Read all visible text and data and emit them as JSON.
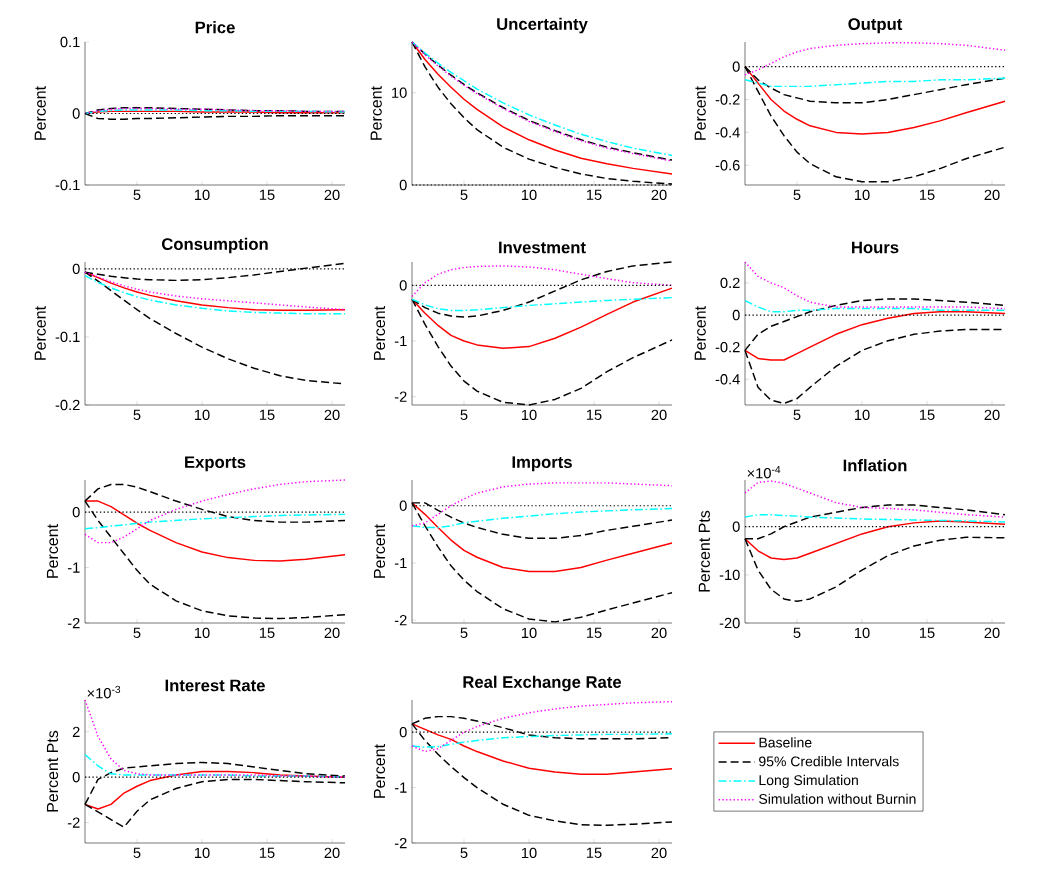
{
  "chart_data": [
    {
      "type": "line",
      "title": "Price",
      "ylabel": "Percent",
      "x": [
        1,
        2,
        3,
        4,
        5,
        6,
        8,
        10,
        12,
        14,
        16,
        18,
        21
      ],
      "xlim": [
        1,
        21
      ],
      "xticks": [
        5,
        10,
        15,
        20
      ],
      "ylim": [
        -0.1,
        0.1
      ],
      "yticks": [
        -0.1,
        0,
        0.1
      ],
      "ref_lines": [
        {
          "axis": "y",
          "value": 0,
          "color": "#000000",
          "line_style": "dotted"
        }
      ],
      "series": [
        {
          "color": "#ff0000",
          "line_style": "solid",
          "values": [
            0,
            0.002,
            0.003,
            0.003,
            0.003,
            0.003,
            0.003,
            0.002,
            0.002,
            0.002,
            0.001,
            0.001,
            0.001
          ]
        },
        {
          "color": "#000000",
          "line_style": "dashed",
          "values": [
            0,
            0.005,
            0.007,
            0.008,
            0.008,
            0.008,
            0.007,
            0.006,
            0.005,
            0.004,
            0.004,
            0.003,
            0.003
          ]
        },
        {
          "color": "#000000",
          "line_style": "dashed",
          "values": [
            0,
            -0.007,
            -0.008,
            -0.008,
            -0.007,
            -0.007,
            -0.006,
            -0.005,
            -0.004,
            -0.004,
            -0.003,
            -0.003,
            -0.003
          ]
        },
        {
          "color": "#00ffff",
          "line_style": "dashdot",
          "values": [
            0,
            0.003,
            0.004,
            0.005,
            0.005,
            0.005,
            0.005,
            0.004,
            0.004,
            0.003,
            0.003,
            0.003,
            0.002
          ]
        },
        {
          "color": "#ff00ff",
          "line_style": "dotted",
          "values": [
            0,
            0.004,
            0.006,
            0.007,
            0.007,
            0.007,
            0.006,
            0.006,
            0.005,
            0.004,
            0.004,
            0.003,
            0.003
          ]
        }
      ]
    },
    {
      "type": "line",
      "title": "Uncertainty",
      "ylabel": "Percent",
      "x": [
        1,
        2,
        3,
        4,
        5,
        6,
        8,
        10,
        12,
        14,
        16,
        18,
        21
      ],
      "xlim": [
        1,
        21
      ],
      "xticks": [
        5,
        10,
        15,
        20
      ],
      "ylim": [
        0,
        15.5
      ],
      "yticks": [
        0,
        10
      ],
      "ref_lines": [
        {
          "axis": "y",
          "value": 0,
          "color": "#000000",
          "line_style": "dotted"
        }
      ],
      "series": [
        {
          "color": "#ff0000",
          "line_style": "solid",
          "values": [
            15.5,
            13.6,
            12.0,
            10.6,
            9.3,
            8.2,
            6.3,
            4.9,
            3.8,
            2.9,
            2.3,
            1.8,
            1.2
          ]
        },
        {
          "color": "#000000",
          "line_style": "dashed",
          "values": [
            15.5,
            14.2,
            13.0,
            11.9,
            10.9,
            10.0,
            8.4,
            7.0,
            5.9,
            4.9,
            4.1,
            3.5,
            2.7
          ]
        },
        {
          "color": "#000000",
          "line_style": "dashed",
          "values": [
            15.5,
            12.8,
            10.6,
            8.8,
            7.3,
            6.0,
            4.1,
            2.8,
            1.9,
            1.2,
            0.7,
            0.4,
            0.1
          ]
        },
        {
          "color": "#00ffff",
          "line_style": "dashdot",
          "values": [
            15.5,
            14.3,
            13.2,
            12.2,
            11.3,
            10.4,
            8.9,
            7.6,
            6.5,
            5.5,
            4.7,
            4.0,
            3.2
          ]
        },
        {
          "color": "#ff00ff",
          "line_style": "dotted",
          "values": [
            15.5,
            14.1,
            12.9,
            11.8,
            10.8,
            9.9,
            8.3,
            6.9,
            5.8,
            4.8,
            4.0,
            3.4,
            2.6
          ]
        }
      ]
    },
    {
      "type": "line",
      "title": "Output",
      "ylabel": "Percent",
      "x": [
        1,
        2,
        3,
        4,
        5,
        6,
        8,
        10,
        12,
        14,
        16,
        18,
        21
      ],
      "xlim": [
        1,
        21
      ],
      "xticks": [
        5,
        10,
        15,
        20
      ],
      "ylim": [
        -0.72,
        0.15
      ],
      "yticks": [
        -0.6,
        -0.4,
        -0.2,
        0
      ],
      "ref_lines": [
        {
          "axis": "y",
          "value": 0,
          "color": "#000000",
          "line_style": "dotted"
        }
      ],
      "series": [
        {
          "color": "#ff0000",
          "line_style": "solid",
          "values": [
            0,
            -0.1,
            -0.2,
            -0.27,
            -0.32,
            -0.36,
            -0.4,
            -0.41,
            -0.4,
            -0.37,
            -0.33,
            -0.28,
            -0.21
          ]
        },
        {
          "color": "#000000",
          "line_style": "dashed",
          "values": [
            0,
            -0.08,
            -0.13,
            -0.17,
            -0.19,
            -0.21,
            -0.22,
            -0.22,
            -0.2,
            -0.17,
            -0.14,
            -0.11,
            -0.07
          ]
        },
        {
          "color": "#000000",
          "line_style": "dashed",
          "values": [
            0,
            -0.15,
            -0.3,
            -0.42,
            -0.52,
            -0.59,
            -0.67,
            -0.7,
            -0.7,
            -0.67,
            -0.62,
            -0.56,
            -0.49
          ]
        },
        {
          "color": "#00ffff",
          "line_style": "dashdot",
          "values": [
            -0.08,
            -0.1,
            -0.12,
            -0.12,
            -0.12,
            -0.12,
            -0.11,
            -0.1,
            -0.09,
            -0.09,
            -0.08,
            -0.08,
            -0.07
          ]
        },
        {
          "color": "#ff00ff",
          "line_style": "dotted",
          "values": [
            -0.05,
            -0.02,
            0.02,
            0.06,
            0.09,
            0.11,
            0.13,
            0.14,
            0.145,
            0.145,
            0.14,
            0.13,
            0.1
          ]
        }
      ]
    },
    {
      "type": "line",
      "title": "Consumption",
      "ylabel": "Percent",
      "x": [
        1,
        2,
        3,
        4,
        5,
        6,
        8,
        10,
        12,
        14,
        16,
        18,
        21
      ],
      "xlim": [
        1,
        21
      ],
      "xticks": [
        5,
        10,
        15,
        20
      ],
      "ylim": [
        -0.2,
        0.01
      ],
      "yticks": [
        -0.2,
        -0.1,
        0
      ],
      "ref_lines": [
        {
          "axis": "y",
          "value": 0,
          "color": "#000000",
          "line_style": "dotted"
        }
      ],
      "series": [
        {
          "color": "#ff0000",
          "line_style": "solid",
          "values": [
            -0.005,
            -0.013,
            -0.021,
            -0.028,
            -0.034,
            -0.039,
            -0.047,
            -0.053,
            -0.057,
            -0.06,
            -0.061,
            -0.061,
            -0.06
          ]
        },
        {
          "color": "#000000",
          "line_style": "dashed",
          "values": [
            -0.005,
            -0.008,
            -0.011,
            -0.013,
            -0.015,
            -0.016,
            -0.017,
            -0.016,
            -0.013,
            -0.009,
            -0.004,
            0.001,
            0.008
          ]
        },
        {
          "color": "#000000",
          "line_style": "dashed",
          "values": [
            -0.005,
            -0.018,
            -0.032,
            -0.046,
            -0.06,
            -0.073,
            -0.095,
            -0.115,
            -0.132,
            -0.146,
            -0.157,
            -0.164,
            -0.169
          ]
        },
        {
          "color": "#00ffff",
          "line_style": "dashdot",
          "values": [
            -0.01,
            -0.02,
            -0.028,
            -0.035,
            -0.041,
            -0.046,
            -0.053,
            -0.058,
            -0.062,
            -0.064,
            -0.065,
            -0.066,
            -0.066
          ]
        },
        {
          "color": "#ff00ff",
          "line_style": "dotted",
          "values": [
            -0.005,
            -0.012,
            -0.019,
            -0.025,
            -0.03,
            -0.034,
            -0.04,
            -0.044,
            -0.047,
            -0.05,
            -0.053,
            -0.056,
            -0.06
          ]
        }
      ]
    },
    {
      "type": "line",
      "title": "Investment",
      "ylabel": "Percent",
      "x": [
        1,
        2,
        3,
        4,
        5,
        6,
        8,
        10,
        12,
        14,
        16,
        18,
        21
      ],
      "xlim": [
        1,
        21
      ],
      "xticks": [
        5,
        10,
        15,
        20
      ],
      "ylim": [
        -2.15,
        0.42
      ],
      "yticks": [
        -2,
        -1,
        0
      ],
      "ref_lines": [
        {
          "axis": "y",
          "value": 0,
          "color": "#000000",
          "line_style": "dotted"
        }
      ],
      "series": [
        {
          "color": "#ff0000",
          "line_style": "solid",
          "values": [
            -0.25,
            -0.5,
            -0.72,
            -0.9,
            -1.0,
            -1.07,
            -1.13,
            -1.1,
            -0.95,
            -0.75,
            -0.52,
            -0.3,
            -0.05
          ]
        },
        {
          "color": "#000000",
          "line_style": "dashed",
          "values": [
            -0.25,
            -0.4,
            -0.5,
            -0.55,
            -0.57,
            -0.55,
            -0.45,
            -0.3,
            -0.1,
            0.1,
            0.25,
            0.35,
            0.42
          ]
        },
        {
          "color": "#000000",
          "line_style": "dashed",
          "values": [
            -0.25,
            -0.7,
            -1.1,
            -1.45,
            -1.72,
            -1.9,
            -2.1,
            -2.15,
            -2.05,
            -1.85,
            -1.55,
            -1.3,
            -0.98
          ]
        },
        {
          "color": "#00ffff",
          "line_style": "dashdot",
          "values": [
            -0.25,
            -0.35,
            -0.42,
            -0.45,
            -0.45,
            -0.44,
            -0.4,
            -0.36,
            -0.33,
            -0.3,
            -0.27,
            -0.25,
            -0.22
          ]
        },
        {
          "color": "#ff00ff",
          "line_style": "dotted",
          "values": [
            -0.2,
            0.05,
            0.2,
            0.28,
            0.32,
            0.34,
            0.35,
            0.33,
            0.28,
            0.2,
            0.12,
            0.05,
            0.0
          ]
        }
      ]
    },
    {
      "type": "line",
      "title": "Hours",
      "ylabel": "Percent",
      "x": [
        1,
        2,
        3,
        4,
        5,
        6,
        8,
        10,
        12,
        14,
        16,
        18,
        21
      ],
      "xlim": [
        1,
        21
      ],
      "xticks": [
        5,
        10,
        15,
        20
      ],
      "ylim": [
        -0.56,
        0.33
      ],
      "yticks": [
        -0.4,
        -0.2,
        0,
        0.2
      ],
      "ref_lines": [
        {
          "axis": "y",
          "value": 0,
          "color": "#000000",
          "line_style": "dotted"
        }
      ],
      "series": [
        {
          "color": "#ff0000",
          "line_style": "solid",
          "values": [
            -0.22,
            -0.27,
            -0.28,
            -0.28,
            -0.24,
            -0.2,
            -0.12,
            -0.06,
            -0.02,
            0.01,
            0.02,
            0.02,
            0.01
          ]
        },
        {
          "color": "#000000",
          "line_style": "dashed",
          "values": [
            -0.22,
            -0.12,
            -0.07,
            -0.04,
            -0.01,
            0.02,
            0.06,
            0.09,
            0.1,
            0.1,
            0.09,
            0.08,
            0.06
          ]
        },
        {
          "color": "#000000",
          "line_style": "dashed",
          "values": [
            -0.22,
            -0.45,
            -0.53,
            -0.55,
            -0.52,
            -0.45,
            -0.32,
            -0.22,
            -0.16,
            -0.12,
            -0.1,
            -0.09,
            -0.09
          ]
        },
        {
          "color": "#00ffff",
          "line_style": "dashdot",
          "values": [
            0.09,
            0.05,
            0.02,
            0.02,
            0.03,
            0.03,
            0.04,
            0.04,
            0.04,
            0.04,
            0.03,
            0.03,
            0.03
          ]
        },
        {
          "color": "#ff00ff",
          "line_style": "dotted",
          "values": [
            0.33,
            0.24,
            0.2,
            0.17,
            0.12,
            0.08,
            0.05,
            0.05,
            0.05,
            0.05,
            0.05,
            0.05,
            0.04
          ]
        }
      ]
    },
    {
      "type": "line",
      "title": "Exports",
      "ylabel": "Percent",
      "x": [
        1,
        2,
        3,
        4,
        5,
        6,
        8,
        10,
        12,
        14,
        16,
        18,
        21
      ],
      "xlim": [
        1,
        21
      ],
      "xticks": [
        5,
        10,
        15,
        20
      ],
      "ylim": [
        -2,
        0.58
      ],
      "yticks": [
        -2,
        -1,
        0
      ],
      "ref_lines": [
        {
          "axis": "y",
          "value": 0,
          "color": "#000000",
          "line_style": "dotted"
        }
      ],
      "series": [
        {
          "color": "#ff0000",
          "line_style": "solid",
          "values": [
            0.2,
            0.2,
            0.1,
            -0.05,
            -0.2,
            -0.33,
            -0.55,
            -0.72,
            -0.82,
            -0.87,
            -0.88,
            -0.85,
            -0.77
          ]
        },
        {
          "color": "#000000",
          "line_style": "dashed",
          "values": [
            0.2,
            0.42,
            0.5,
            0.5,
            0.45,
            0.37,
            0.2,
            0.05,
            -0.08,
            -0.15,
            -0.18,
            -0.18,
            -0.15
          ]
        },
        {
          "color": "#000000",
          "line_style": "dashed",
          "values": [
            0.2,
            -0.15,
            -0.45,
            -0.75,
            -1.05,
            -1.3,
            -1.6,
            -1.78,
            -1.87,
            -1.91,
            -1.92,
            -1.9,
            -1.85
          ]
        },
        {
          "color": "#00ffff",
          "line_style": "dashdot",
          "values": [
            -0.3,
            -0.28,
            -0.25,
            -0.23,
            -0.2,
            -0.18,
            -0.15,
            -0.12,
            -0.1,
            -0.08,
            -0.06,
            -0.05,
            -0.04
          ]
        },
        {
          "color": "#ff00ff",
          "line_style": "dotted",
          "values": [
            -0.4,
            -0.55,
            -0.55,
            -0.45,
            -0.3,
            -0.15,
            0.05,
            0.2,
            0.32,
            0.42,
            0.5,
            0.55,
            0.58
          ]
        }
      ]
    },
    {
      "type": "line",
      "title": "Imports",
      "ylabel": "Percent",
      "x": [
        1,
        2,
        3,
        4,
        5,
        6,
        8,
        10,
        12,
        14,
        16,
        18,
        21
      ],
      "xlim": [
        1,
        21
      ],
      "xticks": [
        5,
        10,
        15,
        20
      ],
      "ylim": [
        -2.05,
        0.45
      ],
      "yticks": [
        -2,
        -1,
        0
      ],
      "ref_lines": [
        {
          "axis": "y",
          "value": 0,
          "color": "#000000",
          "line_style": "dotted"
        }
      ],
      "series": [
        {
          "color": "#ff0000",
          "line_style": "solid",
          "values": [
            0.05,
            -0.15,
            -0.38,
            -0.6,
            -0.78,
            -0.9,
            -1.08,
            -1.15,
            -1.15,
            -1.08,
            -0.95,
            -0.83,
            -0.65
          ]
        },
        {
          "color": "#000000",
          "line_style": "dashed",
          "values": [
            0.05,
            0.05,
            -0.08,
            -0.2,
            -0.3,
            -0.38,
            -0.5,
            -0.57,
            -0.57,
            -0.52,
            -0.43,
            -0.36,
            -0.25
          ]
        },
        {
          "color": "#000000",
          "line_style": "dashed",
          "values": [
            0.05,
            -0.35,
            -0.72,
            -1.05,
            -1.3,
            -1.5,
            -1.8,
            -1.98,
            -2.03,
            -1.95,
            -1.82,
            -1.7,
            -1.52
          ]
        },
        {
          "color": "#00ffff",
          "line_style": "dashdot",
          "values": [
            -0.35,
            -0.38,
            -0.38,
            -0.35,
            -0.3,
            -0.27,
            -0.22,
            -0.18,
            -0.14,
            -0.11,
            -0.09,
            -0.07,
            -0.05
          ]
        },
        {
          "color": "#ff00ff",
          "line_style": "dotted",
          "values": [
            -0.35,
            -0.3,
            -0.15,
            0.0,
            0.12,
            0.22,
            0.33,
            0.38,
            0.4,
            0.4,
            0.4,
            0.38,
            0.35
          ]
        }
      ]
    },
    {
      "type": "line",
      "title": "Inflation",
      "ylabel": "Percent Pts",
      "annotations": [
        "×10$^{-4}$"
      ],
      "x": [
        1,
        2,
        3,
        4,
        5,
        6,
        8,
        10,
        12,
        14,
        16,
        18,
        21
      ],
      "xlim": [
        1,
        21
      ],
      "xticks": [
        5,
        10,
        15,
        20
      ],
      "ylim": [
        -20,
        9.7
      ],
      "yticks": [
        -20,
        -10,
        0
      ],
      "ref_lines": [
        {
          "axis": "y",
          "value": 0,
          "color": "#000000",
          "line_style": "dotted"
        }
      ],
      "series": [
        {
          "color": "#ff0000",
          "line_style": "solid",
          "values": [
            -2.5,
            -5,
            -6.5,
            -6.8,
            -6.5,
            -5.5,
            -3.5,
            -1.5,
            0,
            0.8,
            1.2,
            1,
            0.5
          ]
        },
        {
          "color": "#000000",
          "line_style": "dashed",
          "values": [
            -2.5,
            -2.5,
            -1.5,
            0,
            1,
            2,
            3,
            4,
            4.5,
            4.5,
            4,
            3.5,
            2.5
          ]
        },
        {
          "color": "#000000",
          "line_style": "dashed",
          "values": [
            -2.5,
            -9,
            -13,
            -15,
            -15.5,
            -15,
            -12.5,
            -9,
            -6,
            -4,
            -2.8,
            -2.2,
            -2.3
          ]
        },
        {
          "color": "#00ffff",
          "line_style": "dashdot",
          "values": [
            2,
            2.5,
            2.5,
            2.3,
            2.2,
            2,
            1.8,
            1.6,
            1.5,
            1.4,
            1.3,
            1.2,
            1
          ]
        },
        {
          "color": "#ff00ff",
          "line_style": "dotted",
          "values": [
            7,
            9.2,
            9.5,
            9,
            8,
            7,
            5,
            4,
            3.8,
            3.5,
            3,
            2.5,
            2
          ]
        }
      ]
    },
    {
      "type": "line",
      "title": "Interest Rate",
      "ylabel": "Percent Pts",
      "annotations": [
        "×10$^{-3}$"
      ],
      "x": [
        1,
        2,
        3,
        4,
        5,
        6,
        8,
        10,
        12,
        14,
        16,
        18,
        21
      ],
      "xlim": [
        1,
        21
      ],
      "xticks": [
        5,
        10,
        15,
        20
      ],
      "ylim": [
        -2.9,
        3.4
      ],
      "yticks": [
        -2,
        0,
        2
      ],
      "ref_lines": [
        {
          "axis": "y",
          "value": 0,
          "color": "#000000",
          "line_style": "dotted"
        }
      ],
      "series": [
        {
          "color": "#ff0000",
          "line_style": "solid",
          "values": [
            -1.2,
            -1.4,
            -1.2,
            -0.7,
            -0.4,
            -0.15,
            0.1,
            0.25,
            0.25,
            0.2,
            0.1,
            0.05,
            0
          ]
        },
        {
          "color": "#000000",
          "line_style": "dashed",
          "values": [
            -1.2,
            -0.1,
            0.2,
            0.4,
            0.45,
            0.5,
            0.6,
            0.65,
            0.6,
            0.45,
            0.3,
            0.15,
            0.05
          ]
        },
        {
          "color": "#000000",
          "line_style": "dashed",
          "values": [
            -1.2,
            null,
            null,
            -2.2,
            -1.5,
            -1.0,
            -0.5,
            -0.2,
            -0.1,
            -0.1,
            -0.15,
            -0.2,
            -0.25
          ]
        },
        {
          "color": "#00ffff",
          "line_style": "dashdot",
          "values": [
            1.0,
            0.5,
            0.15,
            0.1,
            0.1,
            0.1,
            0.1,
            0.1,
            0.1,
            0.05,
            0.05,
            0.05,
            0
          ]
        },
        {
          "color": "#ff00ff",
          "line_style": "dotted",
          "values": [
            3.4,
            1.8,
            0.8,
            0.3,
            0.15,
            0.1,
            0.1,
            0.1,
            0.1,
            0.1,
            0.05,
            0.05,
            0
          ]
        }
      ]
    },
    {
      "type": "line",
      "title": "Real Exchange Rate",
      "ylabel": "Percent",
      "legend": "right",
      "x": [
        1,
        2,
        3,
        4,
        5,
        6,
        8,
        10,
        12,
        14,
        16,
        18,
        21
      ],
      "xlim": [
        1,
        21
      ],
      "xticks": [
        5,
        10,
        15,
        20
      ],
      "ylim": [
        -2,
        0.58
      ],
      "yticks": [
        -2,
        -1,
        0
      ],
      "ref_lines": [
        {
          "axis": "y",
          "value": 0,
          "color": "#000000",
          "line_style": "dotted"
        }
      ],
      "series": [
        {
          "name": "Baseline",
          "color": "#ff0000",
          "line_style": "solid",
          "values": [
            0.15,
            0.05,
            -0.05,
            -0.13,
            -0.25,
            -0.35,
            -0.52,
            -0.65,
            -0.72,
            -0.76,
            -0.76,
            -0.72,
            -0.66
          ]
        },
        {
          "name": "95% Credible Intervals",
          "color": "#000000",
          "line_style": "dashed",
          "values": [
            0.15,
            0.25,
            0.28,
            0.28,
            0.25,
            0.2,
            0.08,
            -0.05,
            -0.1,
            -0.12,
            -0.12,
            -0.12,
            -0.1
          ]
        },
        {
          "color": "#000000",
          "line_style": "dashed",
          "values": [
            0.15,
            -0.15,
            -0.4,
            -0.62,
            -0.82,
            -1.0,
            -1.3,
            -1.5,
            -1.6,
            -1.67,
            -1.68,
            -1.66,
            -1.62
          ]
        },
        {
          "name": "Long Simulation",
          "color": "#00ffff",
          "line_style": "dashdot",
          "values": [
            -0.25,
            -0.27,
            -0.26,
            -0.22,
            -0.18,
            -0.15,
            -0.1,
            -0.08,
            -0.06,
            -0.05,
            -0.04,
            -0.04,
            -0.03
          ]
        },
        {
          "name": "Simulation without Burnin",
          "color": "#ff00ff",
          "line_style": "dotted",
          "values": [
            -0.25,
            -0.35,
            -0.3,
            -0.15,
            0.0,
            0.1,
            0.25,
            0.35,
            0.42,
            0.47,
            0.5,
            0.53,
            0.55
          ]
        }
      ]
    }
  ]
}
